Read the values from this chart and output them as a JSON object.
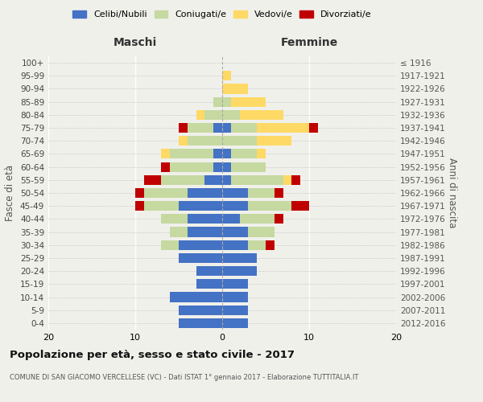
{
  "age_groups": [
    "0-4",
    "5-9",
    "10-14",
    "15-19",
    "20-24",
    "25-29",
    "30-34",
    "35-39",
    "40-44",
    "45-49",
    "50-54",
    "55-59",
    "60-64",
    "65-69",
    "70-74",
    "75-79",
    "80-84",
    "85-89",
    "90-94",
    "95-99",
    "100+"
  ],
  "birth_years": [
    "2012-2016",
    "2007-2011",
    "2002-2006",
    "1997-2001",
    "1992-1996",
    "1987-1991",
    "1982-1986",
    "1977-1981",
    "1972-1976",
    "1967-1971",
    "1962-1966",
    "1957-1961",
    "1952-1956",
    "1947-1951",
    "1942-1946",
    "1937-1941",
    "1932-1936",
    "1927-1931",
    "1922-1926",
    "1917-1921",
    "≤ 1916"
  ],
  "maschi": {
    "celibi": [
      5,
      5,
      6,
      3,
      3,
      5,
      5,
      4,
      4,
      5,
      4,
      2,
      1,
      1,
      0,
      1,
      0,
      0,
      0,
      0,
      0
    ],
    "coniugati": [
      0,
      0,
      0,
      0,
      0,
      0,
      2,
      2,
      3,
      4,
      5,
      5,
      5,
      5,
      4,
      3,
      2,
      1,
      0,
      0,
      0
    ],
    "vedovi": [
      0,
      0,
      0,
      0,
      0,
      0,
      0,
      0,
      0,
      0,
      0,
      0,
      0,
      1,
      1,
      0,
      1,
      0,
      0,
      0,
      0
    ],
    "divorziati": [
      0,
      0,
      0,
      0,
      0,
      0,
      0,
      0,
      0,
      1,
      1,
      2,
      1,
      0,
      0,
      1,
      0,
      0,
      0,
      0,
      0
    ]
  },
  "femmine": {
    "nubili": [
      3,
      3,
      3,
      3,
      4,
      4,
      3,
      3,
      2,
      3,
      3,
      1,
      1,
      1,
      0,
      1,
      0,
      0,
      0,
      0,
      0
    ],
    "coniugate": [
      0,
      0,
      0,
      0,
      0,
      0,
      2,
      3,
      4,
      5,
      3,
      6,
      4,
      3,
      4,
      3,
      2,
      1,
      0,
      0,
      0
    ],
    "vedove": [
      0,
      0,
      0,
      0,
      0,
      0,
      0,
      0,
      0,
      0,
      0,
      1,
      0,
      1,
      4,
      6,
      5,
      4,
      3,
      1,
      0
    ],
    "divorziate": [
      0,
      0,
      0,
      0,
      0,
      0,
      1,
      0,
      1,
      2,
      1,
      1,
      0,
      0,
      0,
      1,
      0,
      0,
      0,
      0,
      0
    ]
  },
  "colors": {
    "celibi_nubili": "#4472C4",
    "coniugati": "#C5D9A0",
    "vedovi": "#FFD966",
    "divorziati": "#C00000"
  },
  "xlim": [
    -20,
    20
  ],
  "xlabel_left": "Maschi",
  "xlabel_right": "Femmine",
  "ylabel": "Fasce di età",
  "ylabel_right": "Anni di nascita",
  "title": "Popolazione per età, sesso e stato civile - 2017",
  "subtitle": "COMUNE DI SAN GIACOMO VERCELLESE (VC) - Dati ISTAT 1° gennaio 2017 - Elaborazione TUTTITALIA.IT",
  "legend_labels": [
    "Celibi/Nubili",
    "Coniugati/e",
    "Vedovi/e",
    "Divorziati/e"
  ],
  "background_color": "#f0f0eb",
  "bar_height": 0.75,
  "xticks": [
    -20,
    -10,
    0,
    10,
    20
  ]
}
